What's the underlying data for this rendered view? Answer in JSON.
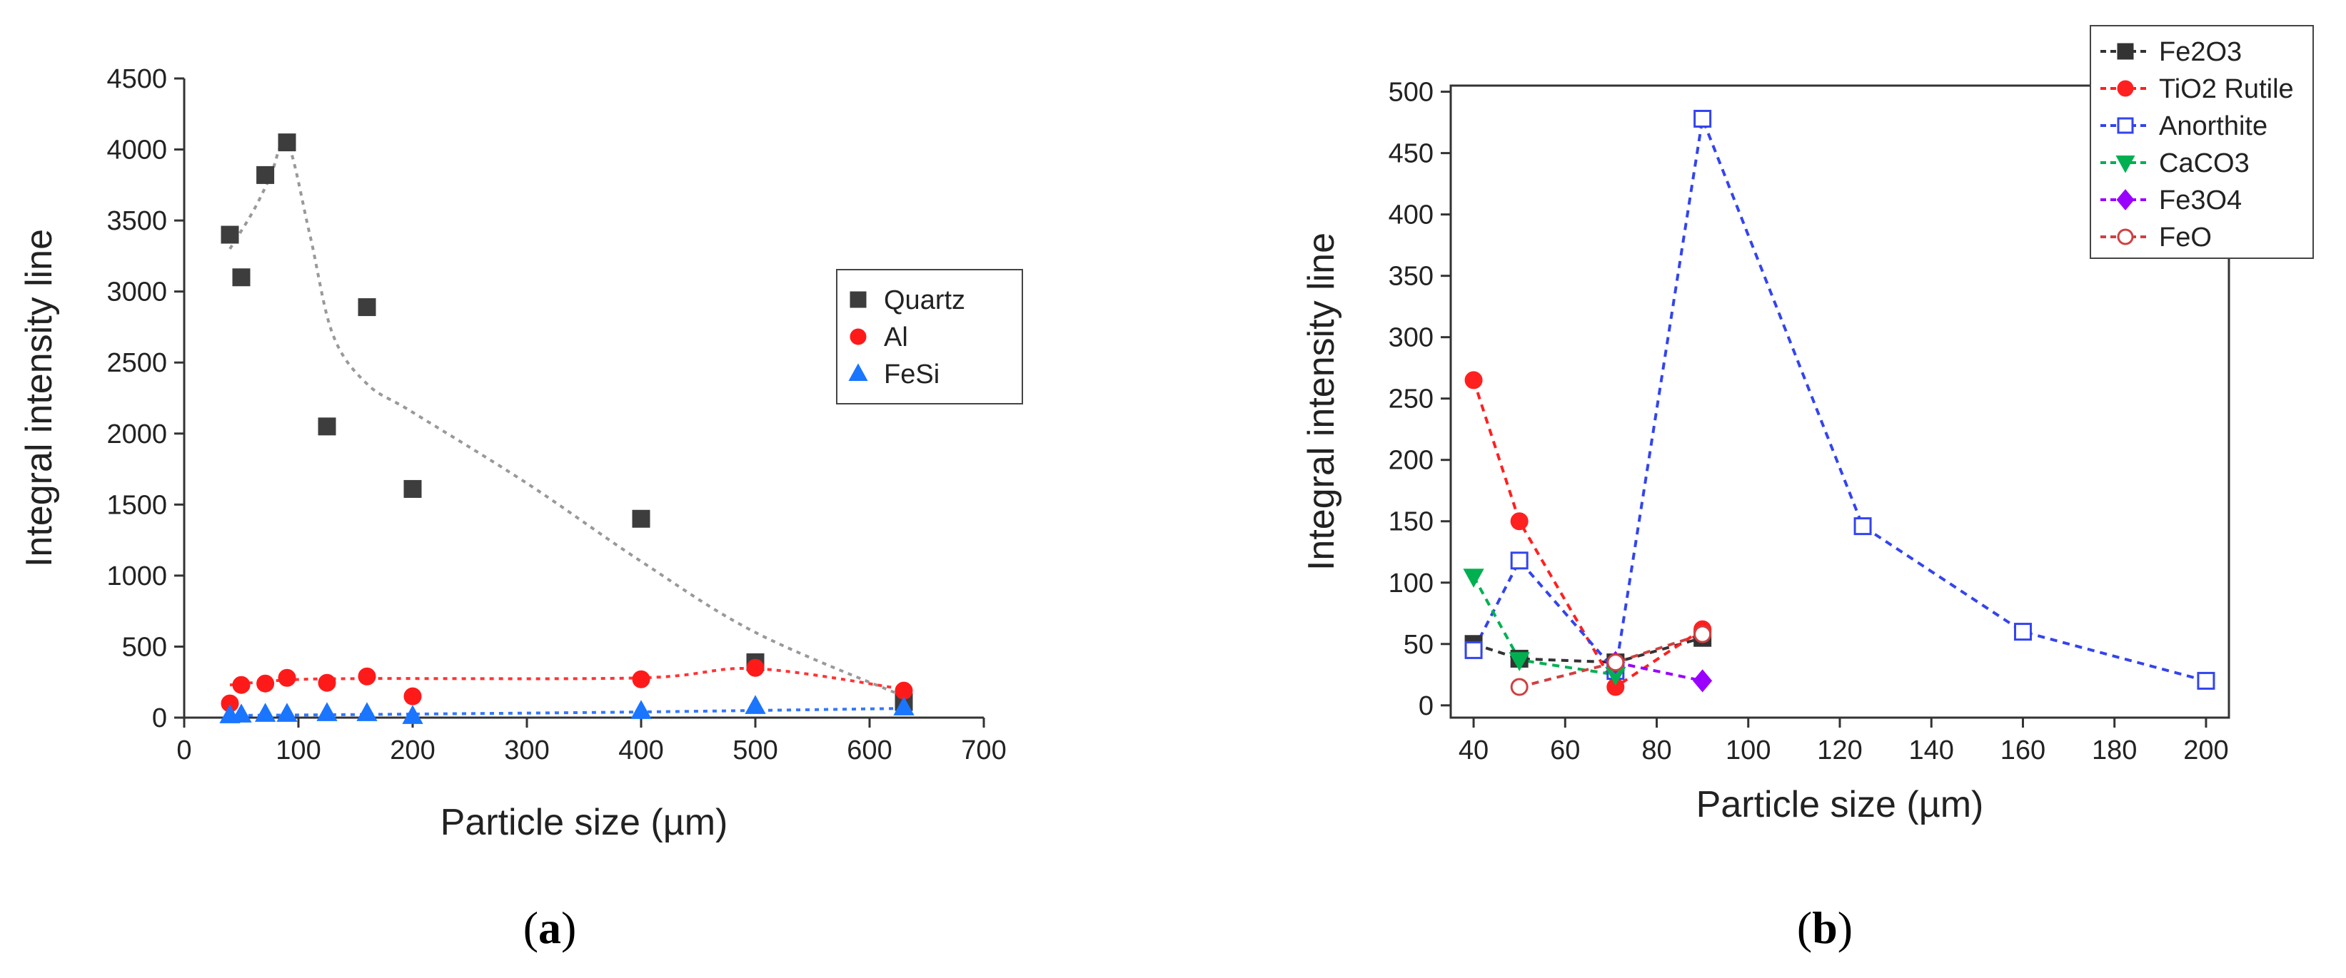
{
  "chart_data": [
    {
      "type": "scatter",
      "panel": "(a)",
      "panel_letter": "a",
      "xlabel": "Particle size (µm)",
      "ylabel": "Integral intensity line",
      "xlim": [
        0,
        700
      ],
      "ylim": [
        0,
        4500
      ],
      "xticks": [
        0,
        100,
        200,
        300,
        400,
        500,
        600,
        700
      ],
      "yticks": [
        0,
        500,
        1000,
        1500,
        2000,
        2500,
        3000,
        3500,
        4000,
        4500
      ],
      "legend_position": "right-middle",
      "series": [
        {
          "name": "Quartz",
          "marker": "square",
          "color": "#3d3d3d",
          "x": [
            40,
            50,
            71,
            90,
            125,
            160,
            200,
            400,
            500,
            630
          ],
          "y": [
            3400,
            3100,
            3820,
            4050,
            2050,
            2890,
            1610,
            1400,
            390,
            110
          ],
          "fit": {
            "color": "#999999",
            "x": [
              40,
              60,
              75,
              90,
              110,
              130,
              160,
              200,
              300,
              400,
              500,
              630
            ],
            "y": [
              3300,
              3560,
              3800,
              4050,
              3400,
              2700,
              2350,
              2150,
              1650,
              1100,
              600,
              150
            ]
          }
        },
        {
          "name": "Al",
          "marker": "circle",
          "color": "#ff1a1a",
          "x": [
            40,
            50,
            71,
            90,
            125,
            160,
            200,
            400,
            500,
            630
          ],
          "y": [
            100,
            230,
            240,
            280,
            245,
            290,
            150,
            270,
            350,
            190
          ],
          "fit": {
            "color": "#ff3333",
            "x": [
              40,
              90,
              160,
              400,
              500,
              630
            ],
            "y": [
              230,
              265,
              275,
              280,
              345,
              200
            ]
          }
        },
        {
          "name": "FeSi",
          "marker": "triangle",
          "color": "#1a75ff",
          "x": [
            40,
            50,
            71,
            90,
            125,
            160,
            200,
            400,
            500,
            630
          ],
          "y": [
            15,
            20,
            25,
            25,
            30,
            30,
            10,
            45,
            80,
            70
          ],
          "fit": {
            "color": "#3377ff",
            "x": [
              40,
              200,
              400,
              630
            ],
            "y": [
              15,
              25,
              40,
              65
            ]
          }
        }
      ]
    },
    {
      "type": "line",
      "panel": "(b)",
      "panel_letter": "b",
      "xlabel": "Particle size (µm)",
      "ylabel": "Integral intensity line",
      "xlim": [
        35,
        205
      ],
      "ylim": [
        -10,
        505
      ],
      "xticks": [
        40,
        60,
        80,
        100,
        120,
        140,
        160,
        180,
        200
      ],
      "yticks": [
        0,
        50,
        100,
        150,
        200,
        250,
        300,
        350,
        400,
        450,
        500
      ],
      "legend_position": "top-right",
      "series": [
        {
          "name": "Fe2O3",
          "marker": "square",
          "filled": true,
          "color": "#333333",
          "x": [
            40,
            50,
            71,
            90
          ],
          "y": [
            50,
            38,
            35,
            55
          ]
        },
        {
          "name": "TiO2 Rutile",
          "marker": "circle",
          "filled": true,
          "color": "#ff2020",
          "x": [
            40,
            50,
            71,
            90
          ],
          "y": [
            265,
            150,
            15,
            62
          ]
        },
        {
          "name": "Anorthite",
          "marker": "square",
          "filled": false,
          "color": "#3344ee",
          "x": [
            40,
            50,
            71,
            90,
            125,
            160,
            200
          ],
          "y": [
            45,
            118,
            28,
            478,
            146,
            60,
            20
          ]
        },
        {
          "name": "CaCO3",
          "marker": "triangle-down",
          "filled": true,
          "color": "#00b050",
          "x": [
            40,
            50,
            71
          ],
          "y": [
            105,
            37,
            25
          ]
        },
        {
          "name": "Fe3O4",
          "marker": "diamond",
          "filled": true,
          "color": "#9900ff",
          "x": [
            71,
            90
          ],
          "y": [
            35,
            20
          ]
        },
        {
          "name": "FeO",
          "marker": "circle",
          "filled": false,
          "color": "#d04040",
          "x": [
            50,
            71,
            90
          ],
          "y": [
            15,
            35,
            58
          ]
        }
      ]
    }
  ]
}
